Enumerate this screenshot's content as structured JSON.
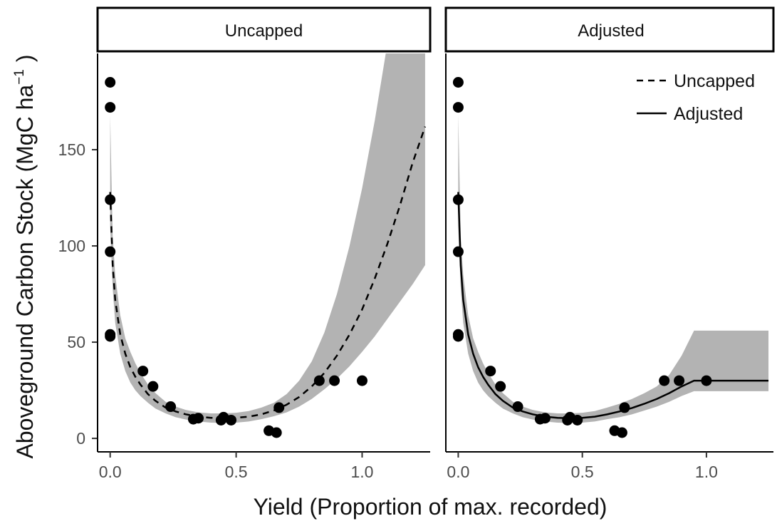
{
  "chart_data": {
    "type": "scatter",
    "ylabel": "Aboveground Carbon Stock (MgC ha",
    "ylabel_sup": "−1",
    "ylabel_end": ")",
    "xlabel": "Yield (Proportion of max. recorded)",
    "xlim": [
      -0.05,
      1.27
    ],
    "ylim": [
      -7,
      200
    ],
    "xticks": [
      0.0,
      0.5,
      1.0
    ],
    "xtick_labels": [
      "0.0",
      "0.5",
      "1.0"
    ],
    "yticks": [
      0,
      50,
      100,
      150
    ],
    "ytick_labels": [
      "0",
      "50",
      "100",
      "150"
    ],
    "grid": false,
    "legend": {
      "position": "top-right",
      "entries": [
        {
          "label": "Uncapped",
          "style": "dashed"
        },
        {
          "label": "Adjusted",
          "style": "solid"
        }
      ]
    },
    "points": [
      {
        "x": 0.0,
        "y": 185
      },
      {
        "x": 0.0,
        "y": 172
      },
      {
        "x": 0.0,
        "y": 124
      },
      {
        "x": 0.0,
        "y": 97
      },
      {
        "x": 0.0,
        "y": 54
      },
      {
        "x": 0.0,
        "y": 53
      },
      {
        "x": 0.13,
        "y": 35
      },
      {
        "x": 0.17,
        "y": 27
      },
      {
        "x": 0.24,
        "y": 16.5
      },
      {
        "x": 0.33,
        "y": 10
      },
      {
        "x": 0.35,
        "y": 10.5
      },
      {
        "x": 0.44,
        "y": 9.5
      },
      {
        "x": 0.45,
        "y": 11
      },
      {
        "x": 0.48,
        "y": 9.5
      },
      {
        "x": 0.63,
        "y": 4
      },
      {
        "x": 0.66,
        "y": 3
      },
      {
        "x": 0.67,
        "y": 16
      },
      {
        "x": 0.83,
        "y": 30
      },
      {
        "x": 0.89,
        "y": 30
      },
      {
        "x": 1.0,
        "y": 30
      }
    ],
    "panels": [
      {
        "strip": "Uncapped",
        "line_style": "dashed",
        "line": {
          "x": [
            0.0,
            0.01,
            0.02,
            0.04,
            0.06,
            0.08,
            0.1,
            0.12,
            0.15,
            0.18,
            0.22,
            0.26,
            0.3,
            0.35,
            0.4,
            0.45,
            0.5,
            0.55,
            0.6,
            0.65,
            0.7,
            0.75,
            0.8,
            0.85,
            0.9,
            0.95,
            1.0,
            1.05,
            1.1,
            1.15,
            1.2,
            1.25
          ],
          "y": [
            128,
            90,
            72,
            54,
            44,
            37,
            32,
            28,
            23,
            19.5,
            16,
            14,
            12.5,
            11.3,
            10.7,
            10.5,
            10.7,
            11.3,
            12.5,
            14.5,
            17.5,
            21.5,
            27,
            34,
            43,
            54,
            67,
            83,
            101,
            121,
            143,
            162
          ]
        },
        "band": {
          "x": [
            0.0,
            0.01,
            0.02,
            0.04,
            0.06,
            0.08,
            0.1,
            0.12,
            0.15,
            0.18,
            0.22,
            0.26,
            0.3,
            0.35,
            0.4,
            0.45,
            0.5,
            0.55,
            0.6,
            0.65,
            0.7,
            0.75,
            0.8,
            0.85,
            0.9,
            0.95,
            1.0,
            1.05,
            1.1,
            1.15,
            1.2,
            1.25
          ],
          "lower": [
            110,
            78,
            60,
            44,
            35,
            29,
            25,
            22,
            18.5,
            15.5,
            13,
            11,
            9.8,
            8.8,
            8.2,
            8,
            8.2,
            8.8,
            10,
            11.5,
            13.5,
            16.5,
            20.5,
            25.5,
            31,
            37.5,
            45,
            53,
            62,
            71,
            80,
            90
          ],
          "upper": [
            168,
            105,
            85,
            64,
            52,
            45,
            39,
            34,
            28,
            23.5,
            19,
            16.5,
            14.8,
            13.5,
            13,
            13,
            13.3,
            14.2,
            16,
            18.5,
            23,
            30,
            40,
            55,
            75,
            100,
            130,
            165,
            205,
            205,
            205,
            205
          ]
        }
      },
      {
        "strip": "Adjusted",
        "line_style": "solid",
        "line": {
          "x": [
            0.0,
            0.01,
            0.02,
            0.04,
            0.06,
            0.08,
            0.1,
            0.12,
            0.15,
            0.18,
            0.22,
            0.26,
            0.3,
            0.35,
            0.4,
            0.45,
            0.5,
            0.55,
            0.6,
            0.65,
            0.7,
            0.75,
            0.8,
            0.85,
            0.9,
            0.95,
            1.0,
            1.05,
            1.1,
            1.15,
            1.2,
            1.25
          ],
          "y": [
            128,
            90,
            72,
            54,
            44,
            37,
            32,
            28,
            23,
            19.5,
            16,
            14,
            12.5,
            11.3,
            10.7,
            10.5,
            10.7,
            11.3,
            12.5,
            14,
            15.8,
            18,
            20.5,
            23.5,
            27,
            30,
            30,
            30,
            30,
            30,
            30,
            30
          ]
        },
        "band": {
          "x": [
            0.0,
            0.01,
            0.02,
            0.04,
            0.06,
            0.08,
            0.1,
            0.12,
            0.15,
            0.18,
            0.22,
            0.26,
            0.3,
            0.35,
            0.4,
            0.45,
            0.5,
            0.55,
            0.6,
            0.65,
            0.7,
            0.75,
            0.8,
            0.85,
            0.9,
            0.95,
            1.0,
            1.05,
            1.1,
            1.15,
            1.2,
            1.25
          ],
          "lower": [
            110,
            78,
            60,
            44,
            35,
            29,
            25,
            22,
            18.5,
            15.5,
            13,
            11,
            9.8,
            8.8,
            8.2,
            8,
            8.2,
            8.8,
            10,
            11,
            12.5,
            14.5,
            16.5,
            19,
            22,
            24.5,
            24.5,
            24.5,
            24.5,
            24.5,
            24.5,
            24.5
          ],
          "upper": [
            168,
            105,
            85,
            64,
            52,
            45,
            39,
            34,
            28,
            23.5,
            19,
            16.5,
            14.8,
            13.5,
            13,
            13,
            13.3,
            14.2,
            16,
            18,
            20.5,
            23.5,
            27,
            33,
            43,
            56,
            56,
            56,
            56,
            56,
            56,
            56
          ]
        }
      }
    ]
  }
}
